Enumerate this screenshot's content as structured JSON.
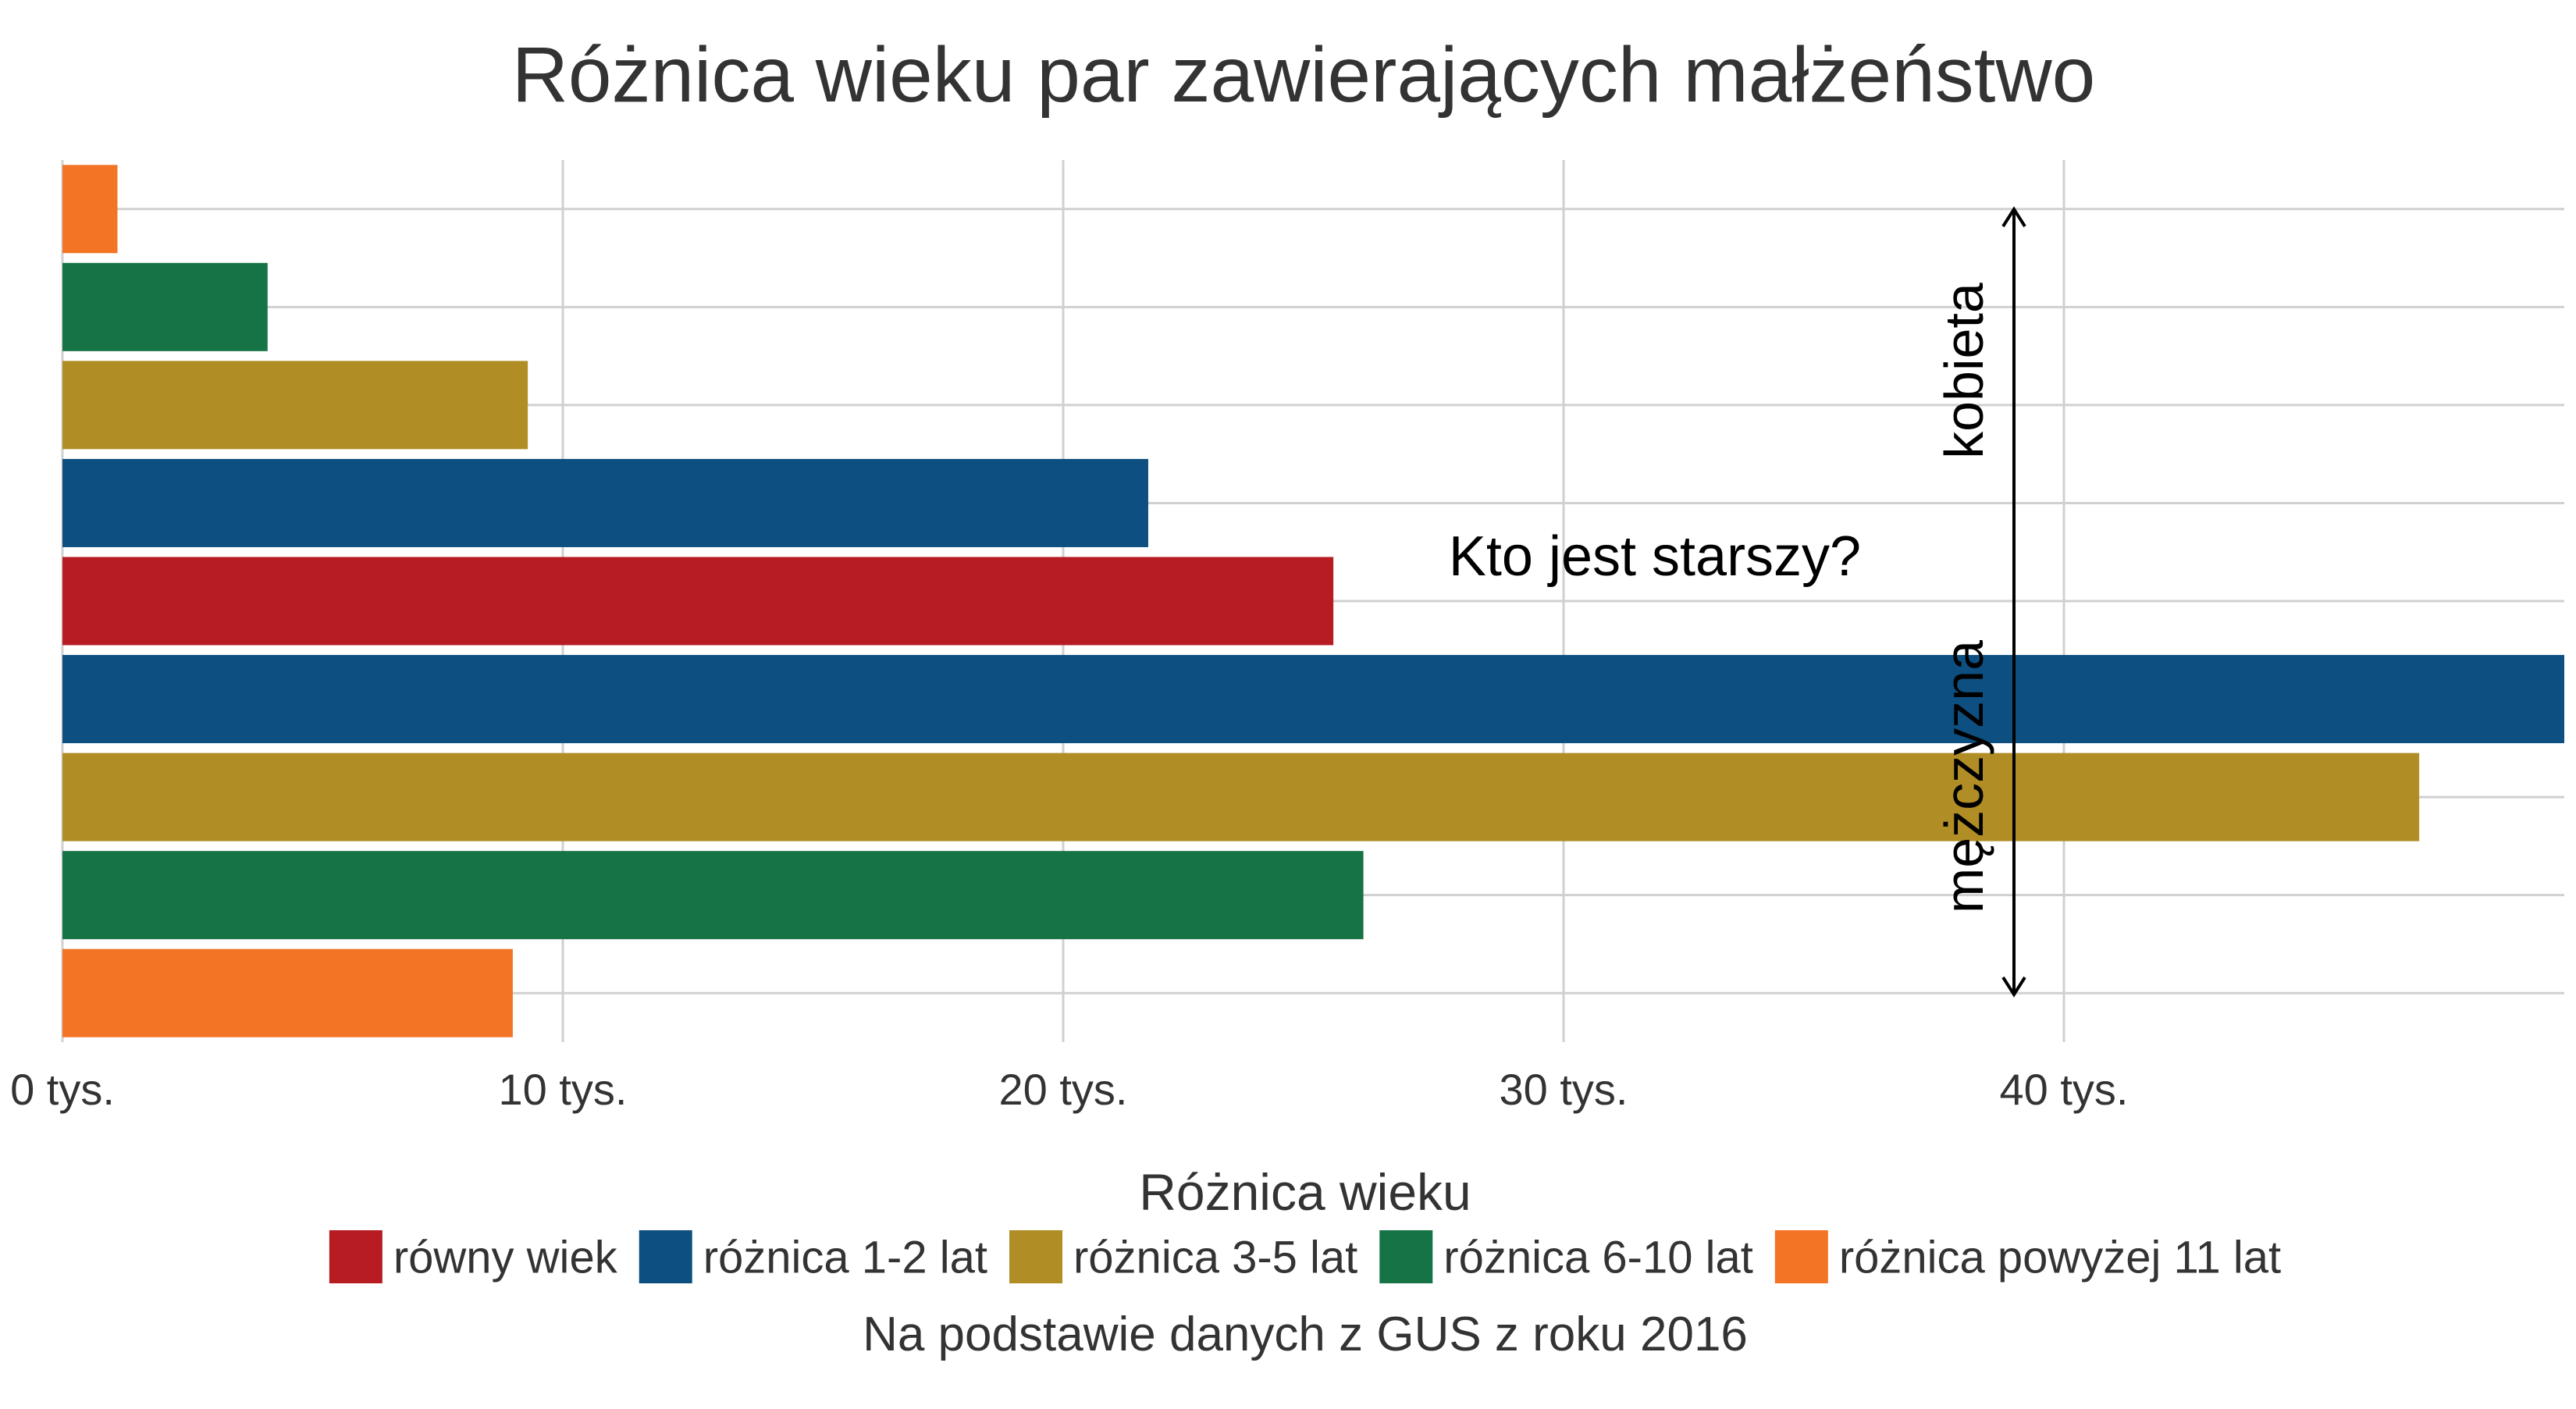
{
  "chart_data": {
    "type": "bar",
    "orientation": "horizontal",
    "title": "Różnica wieku par zawierających małżeństwo",
    "subtitle": "",
    "xlabel": "",
    "ylabel": "",
    "x_ticks": [
      {
        "value": 0,
        "label": "0 tys."
      },
      {
        "value": 10000,
        "label": "10 tys."
      },
      {
        "value": 20000,
        "label": "20 tys."
      },
      {
        "value": 30000,
        "label": "30 tys."
      },
      {
        "value": 40000,
        "label": "40 tys."
      }
    ],
    "xlim": [
      0,
      50000
    ],
    "grid": true,
    "bars": [
      {
        "category": "różnica powyżej 11 lat",
        "older": "kobieta",
        "value": 1100
      },
      {
        "category": "różnica 6-10 lat",
        "older": "kobieta",
        "value": 4100
      },
      {
        "category": "różnica 3-5 lat",
        "older": "kobieta",
        "value": 9300
      },
      {
        "category": "różnica 1-2 lat",
        "older": "kobieta",
        "value": 21700
      },
      {
        "category": "równy wiek",
        "older": "",
        "value": 25400
      },
      {
        "category": "różnica 1-2 lat",
        "older": "mężczyzna",
        "value": 50000
      },
      {
        "category": "różnica 3-5 lat",
        "older": "mężczyzna",
        "value": 47100
      },
      {
        "category": "różnica 6-10 lat",
        "older": "mężczyzna",
        "value": 26000
      },
      {
        "category": "różnica powyżej 11 lat",
        "older": "mężczyzna",
        "value": 9000
      }
    ],
    "legend": {
      "title": "Różnica wieku",
      "placement": "bottom",
      "items": [
        {
          "label": "równy wiek",
          "color": "#b71c23"
        },
        {
          "label": "różnica 1-2 lat",
          "color": "#0d4f80"
        },
        {
          "label": "różnica 3-5 lat",
          "color": "#b08e25"
        },
        {
          "label": "różnica 6-10 lat",
          "color": "#167345"
        },
        {
          "label": "różnica powyżej 11 lat",
          "color": "#f47425"
        }
      ]
    },
    "annotations": {
      "question": "Kto jest starszy?",
      "top_label": "kobieta",
      "bottom_label": "mężczyzna"
    },
    "caption": "Na podstawie danych z GUS z roku 2016"
  }
}
